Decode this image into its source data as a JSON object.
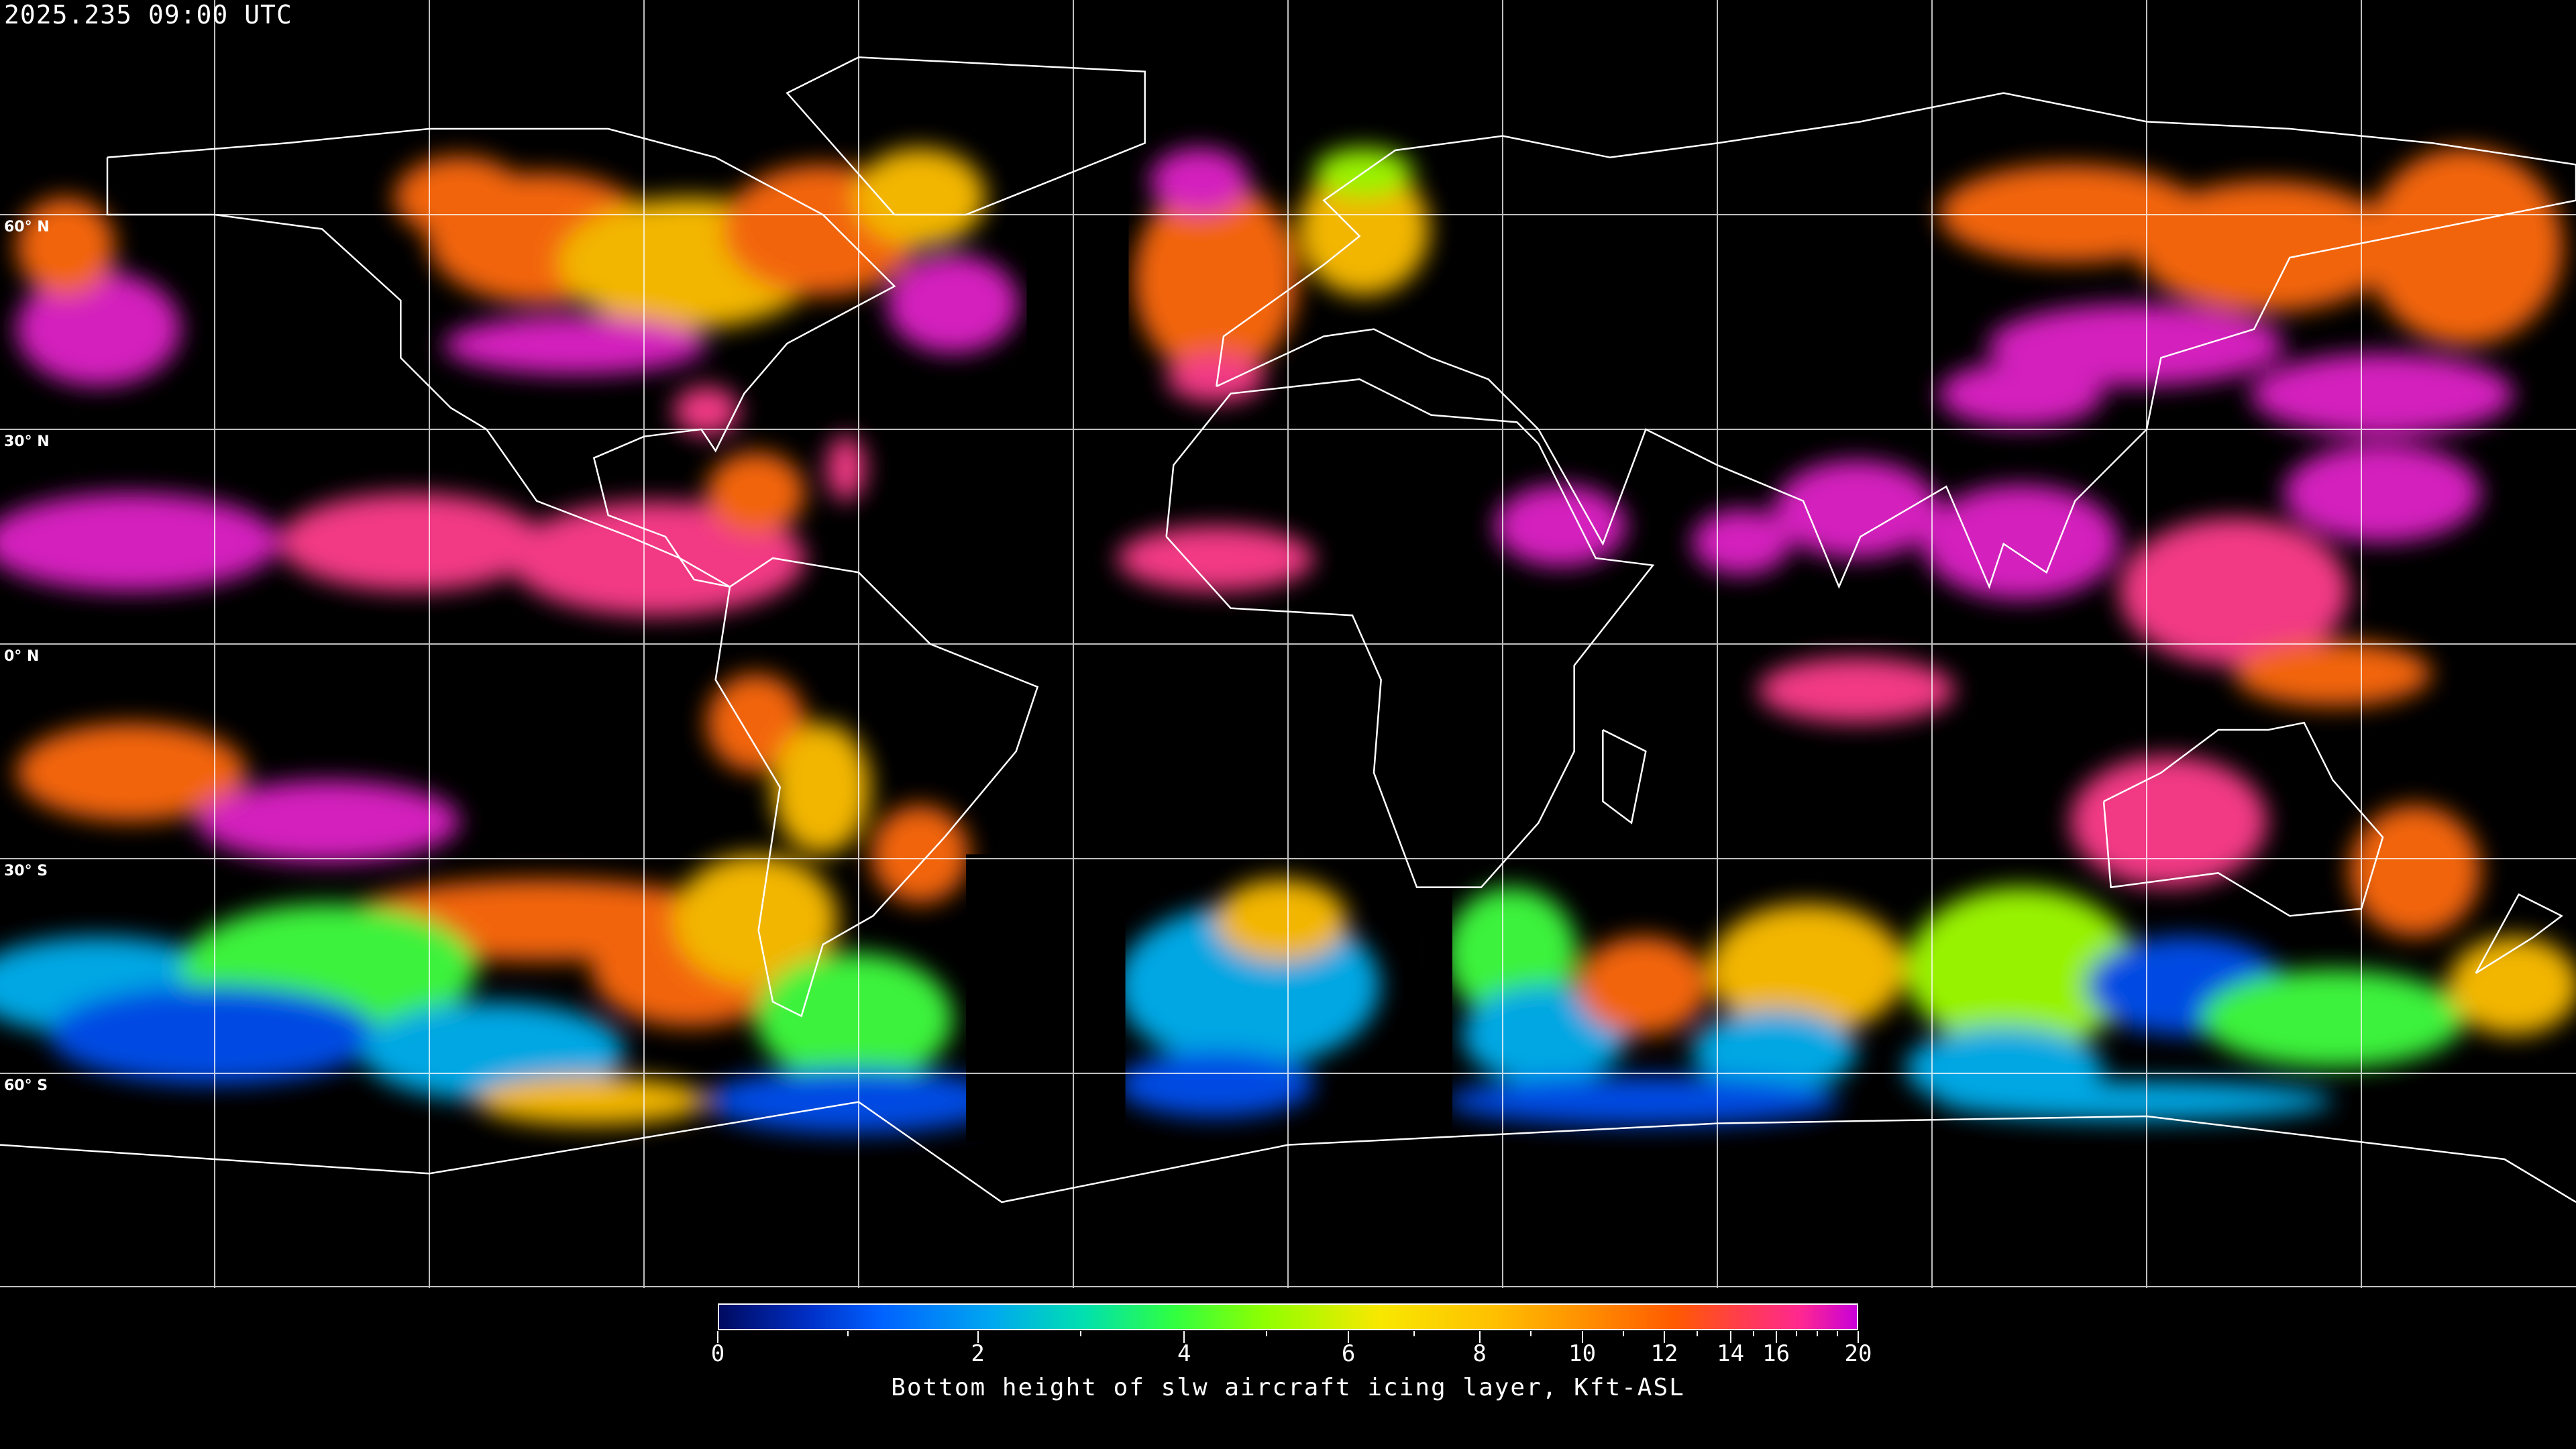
{
  "header": {
    "timestamp": "2025.235 09:00 UTC"
  },
  "map": {
    "projection": "equirectangular",
    "background": "#000000",
    "coastline_color": "#ffffff",
    "gridline_color": "#ffffff",
    "grid_spacing_deg": 30,
    "lat_labels": [
      {
        "lat": 60,
        "text": "60° N"
      },
      {
        "lat": 30,
        "text": "30° N"
      },
      {
        "lat": 0,
        "text": "0° N"
      },
      {
        "lat": -30,
        "text": "30° S"
      },
      {
        "lat": -60,
        "text": "60° S"
      }
    ]
  },
  "colorbar": {
    "label": "Bottom height of slw aircraft icing layer, Kft-ASL",
    "range": [
      0,
      20
    ],
    "major_ticks": [
      {
        "value": 0,
        "text": "0"
      },
      {
        "value": 2,
        "text": "2"
      },
      {
        "value": 4,
        "text": "4"
      },
      {
        "value": 6,
        "text": "6"
      },
      {
        "value": 8,
        "text": "8"
      },
      {
        "value": 10,
        "text": "10"
      },
      {
        "value": 12,
        "text": "12"
      },
      {
        "value": 14,
        "text": "14"
      },
      {
        "value": 16,
        "text": "16"
      },
      {
        "value": 20,
        "text": "20"
      }
    ],
    "minor_ticks": [
      1,
      3,
      5,
      7,
      9,
      11,
      13,
      15,
      17,
      18,
      19
    ],
    "colors": [
      "#000a60",
      "#0060ff",
      "#00a8f0",
      "#30ff40",
      "#f8e800",
      "#ffc000",
      "#ff5a00",
      "#ff2890",
      "#c800d8"
    ]
  }
}
